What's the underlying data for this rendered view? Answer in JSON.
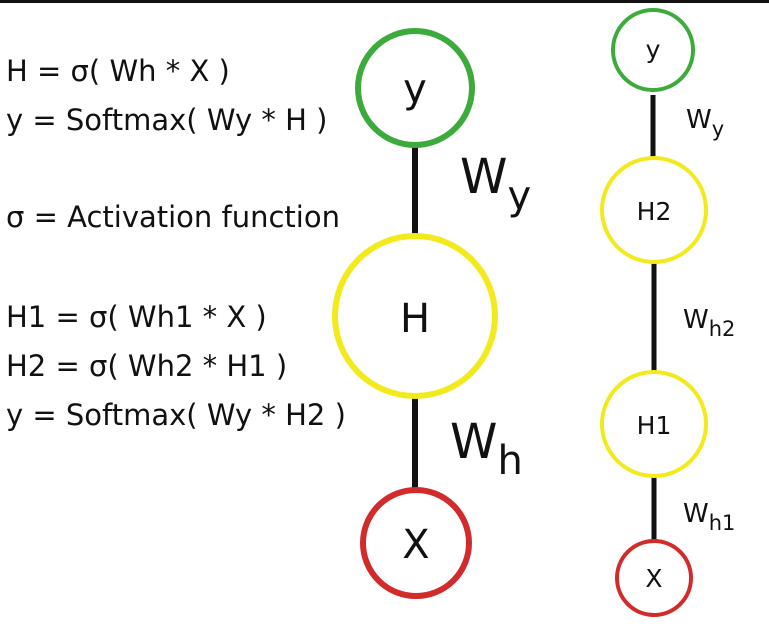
{
  "equations": {
    "single": [
      "H = σ( Wh * X )",
      "y  = Softmax( Wy * H )"
    ],
    "activation": "σ = Activation function",
    "deep": [
      "H1 = σ( Wh1 * X )",
      "H2 = σ( Wh2 * H1 )",
      "y   = Softmax( Wy * H2 )"
    ]
  },
  "left_network": {
    "nodes": {
      "output": "y",
      "hidden": "H",
      "input": "X"
    },
    "weights": {
      "top": {
        "base": "W",
        "sub": "y"
      },
      "bottom": {
        "base": "W",
        "sub": "h"
      }
    }
  },
  "right_network": {
    "nodes": {
      "output": "y",
      "hidden2": "H2",
      "hidden1": "H1",
      "input": "X"
    },
    "weights": {
      "wy": {
        "base": "W",
        "sub": "y"
      },
      "wh2": {
        "base": "W",
        "sub": "h2"
      },
      "wh1": {
        "base": "W",
        "sub": "h1"
      }
    }
  },
  "colors": {
    "output": "#3cab3c",
    "hidden": "#f2ea1c",
    "input": "#d22b2b",
    "edge": "#111111"
  }
}
